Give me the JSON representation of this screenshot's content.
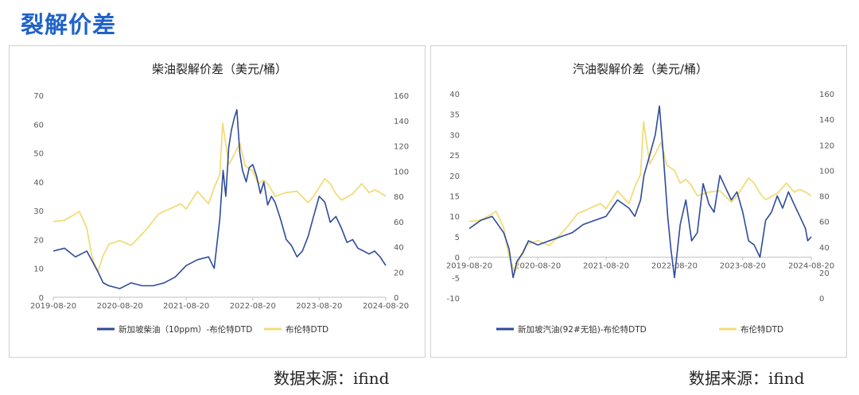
{
  "page": {
    "title": "裂解价差"
  },
  "sources": [
    "数据来源：ifind",
    "数据来源：ifind"
  ],
  "colors": {
    "title": "#1f63c9",
    "series_primary": "#2e4b9a",
    "series_secondary": "#f2dc7a"
  },
  "chart_data": [
    {
      "type": "line",
      "title": "柴油裂解价差（美元/桶）",
      "x_ticks": [
        "2019-08-20",
        "2020-08-20",
        "2021-08-20",
        "2022-08-20",
        "2023-08-20",
        "2024-08-20"
      ],
      "xlim": [
        "2019-08-20",
        "2024-08-20"
      ],
      "y_left": {
        "ticks": [
          0,
          10,
          20,
          30,
          40,
          50,
          60,
          70
        ],
        "ylim": [
          0,
          70
        ]
      },
      "y_right": {
        "ticks": [
          0,
          20,
          40,
          60,
          80,
          100,
          120,
          140,
          160
        ],
        "ylim": [
          0,
          160
        ]
      },
      "legend_position": "bottom",
      "series": [
        {
          "name": "新加坡柴油（10ppm）-布伦特DTD",
          "axis": "left",
          "color": "#2e4b9a",
          "x": [
            "2019-08-20",
            "2019-10-20",
            "2019-12-20",
            "2020-02-20",
            "2020-04-20",
            "2020-05-20",
            "2020-06-20",
            "2020-08-20",
            "2020-10-20",
            "2020-12-20",
            "2021-02-20",
            "2021-04-20",
            "2021-06-20",
            "2021-08-20",
            "2021-10-20",
            "2021-12-20",
            "2022-01-20",
            "2022-02-20",
            "2022-03-10",
            "2022-03-25",
            "2022-04-10",
            "2022-04-25",
            "2022-05-10",
            "2022-05-25",
            "2022-06-10",
            "2022-06-25",
            "2022-07-15",
            "2022-08-01",
            "2022-08-20",
            "2022-09-10",
            "2022-10-01",
            "2022-10-20",
            "2022-11-10",
            "2022-12-01",
            "2022-12-20",
            "2023-01-20",
            "2023-02-20",
            "2023-03-20",
            "2023-04-20",
            "2023-05-20",
            "2023-06-20",
            "2023-07-20",
            "2023-08-20",
            "2023-09-20",
            "2023-10-20",
            "2023-11-20",
            "2023-12-20",
            "2024-01-20",
            "2024-02-20",
            "2024-03-20",
            "2024-04-20",
            "2024-05-20",
            "2024-06-20",
            "2024-07-20",
            "2024-08-20"
          ],
          "values": [
            16,
            17,
            14,
            16,
            9,
            5,
            4,
            3,
            5,
            4,
            4,
            5,
            7,
            11,
            13,
            14,
            10,
            27,
            44,
            35,
            52,
            58,
            62,
            65,
            50,
            44,
            40,
            45,
            46,
            42,
            36,
            40,
            32,
            35,
            33,
            27,
            20,
            18,
            14,
            16,
            21,
            28,
            35,
            33,
            26,
            28,
            24,
            19,
            20,
            17,
            16,
            15,
            16,
            14,
            11
          ]
        },
        {
          "name": "布伦特DTD",
          "axis": "right",
          "color": "#f2dc7a",
          "x": [
            "2019-08-20",
            "2019-10-20",
            "2019-12-20",
            "2020-01-10",
            "2020-02-20",
            "2020-03-20",
            "2020-04-20",
            "2020-05-20",
            "2020-06-20",
            "2020-08-20",
            "2020-10-20",
            "2020-12-20",
            "2021-01-20",
            "2021-03-20",
            "2021-05-20",
            "2021-07-20",
            "2021-08-20",
            "2021-10-20",
            "2021-12-20",
            "2022-01-20",
            "2022-02-20",
            "2022-03-08",
            "2022-04-10",
            "2022-05-10",
            "2022-06-10",
            "2022-07-10",
            "2022-08-20",
            "2022-09-20",
            "2022-10-20",
            "2022-11-20",
            "2022-12-20",
            "2023-02-20",
            "2023-04-20",
            "2023-06-20",
            "2023-07-20",
            "2023-09-20",
            "2023-10-20",
            "2023-11-20",
            "2023-12-20",
            "2024-02-20",
            "2024-04-10",
            "2024-05-20",
            "2024-06-20",
            "2024-07-20",
            "2024-08-20"
          ],
          "values": [
            60,
            61,
            66,
            68,
            55,
            32,
            20,
            33,
            42,
            45,
            41,
            50,
            55,
            66,
            70,
            74,
            70,
            84,
            74,
            87,
            97,
            138,
            105,
            113,
            122,
            104,
            100,
            90,
            93,
            88,
            80,
            83,
            84,
            75,
            80,
            94,
            90,
            82,
            77,
            82,
            90,
            83,
            85,
            83,
            80
          ]
        }
      ]
    },
    {
      "type": "line",
      "title": "汽油裂解价差（美元/桶）",
      "x_ticks": [
        "2019-08-20",
        "2020-08-20",
        "2021-08-20",
        "2022-08-20",
        "2023-08-20",
        "2024-08-20"
      ],
      "xlim": [
        "2019-08-20",
        "2024-08-20"
      ],
      "y_left": {
        "ticks": [
          -10,
          -5,
          0,
          5,
          10,
          15,
          20,
          25,
          30,
          35,
          40
        ],
        "ylim": [
          -10,
          40
        ]
      },
      "y_right": {
        "ticks": [
          0,
          20,
          40,
          60,
          80,
          100,
          120,
          140,
          160
        ],
        "ylim": [
          0,
          160
        ]
      },
      "legend_position": "bottom",
      "series": [
        {
          "name": "新加坡汽油(92#无铅)-布伦特DTD",
          "axis": "left",
          "color": "#2e4b9a",
          "x": [
            "2019-08-20",
            "2019-10-20",
            "2019-12-20",
            "2020-02-20",
            "2020-03-20",
            "2020-04-10",
            "2020-05-01",
            "2020-06-01",
            "2020-07-01",
            "2020-08-20",
            "2020-10-20",
            "2020-12-20",
            "2021-02-20",
            "2021-04-20",
            "2021-06-20",
            "2021-08-20",
            "2021-10-20",
            "2021-12-20",
            "2022-01-20",
            "2022-02-20",
            "2022-03-10",
            "2022-04-10",
            "2022-05-10",
            "2022-06-01",
            "2022-06-20",
            "2022-07-15",
            "2022-08-01",
            "2022-08-20",
            "2022-09-20",
            "2022-10-20",
            "2022-11-20",
            "2022-12-20",
            "2023-01-20",
            "2023-02-20",
            "2023-03-20",
            "2023-04-20",
            "2023-05-20",
            "2023-06-20",
            "2023-07-20",
            "2023-08-20",
            "2023-09-20",
            "2023-10-20",
            "2023-11-20",
            "2023-12-20",
            "2024-01-20",
            "2024-02-20",
            "2024-03-20",
            "2024-04-20",
            "2024-05-20",
            "2024-06-20",
            "2024-07-20",
            "2024-08-01",
            "2024-08-20"
          ],
          "values": [
            7,
            9,
            10,
            6,
            2,
            -5,
            -1,
            1,
            4,
            3,
            4,
            5,
            6,
            8,
            9,
            10,
            14,
            12,
            10,
            14,
            20,
            25,
            30,
            37,
            26,
            10,
            2,
            -5,
            8,
            14,
            4,
            6,
            18,
            13,
            11,
            20,
            17,
            14,
            16,
            11,
            4,
            3,
            0,
            9,
            11,
            15,
            12,
            16,
            13,
            10,
            7,
            4,
            5
          ]
        },
        {
          "name": "布伦特DTD",
          "axis": "right",
          "color": "#f2dc7a",
          "x": [
            "2019-08-20",
            "2019-10-20",
            "2019-12-20",
            "2020-01-10",
            "2020-02-20",
            "2020-03-20",
            "2020-04-20",
            "2020-05-20",
            "2020-06-20",
            "2020-08-20",
            "2020-10-20",
            "2020-12-20",
            "2021-01-20",
            "2021-03-20",
            "2021-05-20",
            "2021-07-20",
            "2021-08-20",
            "2021-10-20",
            "2021-12-20",
            "2022-01-20",
            "2022-02-20",
            "2022-03-08",
            "2022-04-10",
            "2022-05-10",
            "2022-06-10",
            "2022-07-10",
            "2022-08-20",
            "2022-09-20",
            "2022-10-20",
            "2022-11-20",
            "2022-12-20",
            "2023-02-20",
            "2023-04-20",
            "2023-06-20",
            "2023-07-20",
            "2023-09-20",
            "2023-10-20",
            "2023-11-20",
            "2023-12-20",
            "2024-02-20",
            "2024-04-10",
            "2024-05-20",
            "2024-06-20",
            "2024-07-20",
            "2024-08-20"
          ],
          "values": [
            60,
            61,
            66,
            68,
            55,
            32,
            20,
            33,
            42,
            45,
            41,
            50,
            55,
            66,
            70,
            74,
            70,
            84,
            74,
            87,
            97,
            138,
            105,
            113,
            122,
            104,
            100,
            90,
            93,
            88,
            80,
            83,
            84,
            75,
            80,
            94,
            90,
            82,
            77,
            82,
            90,
            83,
            85,
            83,
            80
          ]
        }
      ]
    }
  ]
}
